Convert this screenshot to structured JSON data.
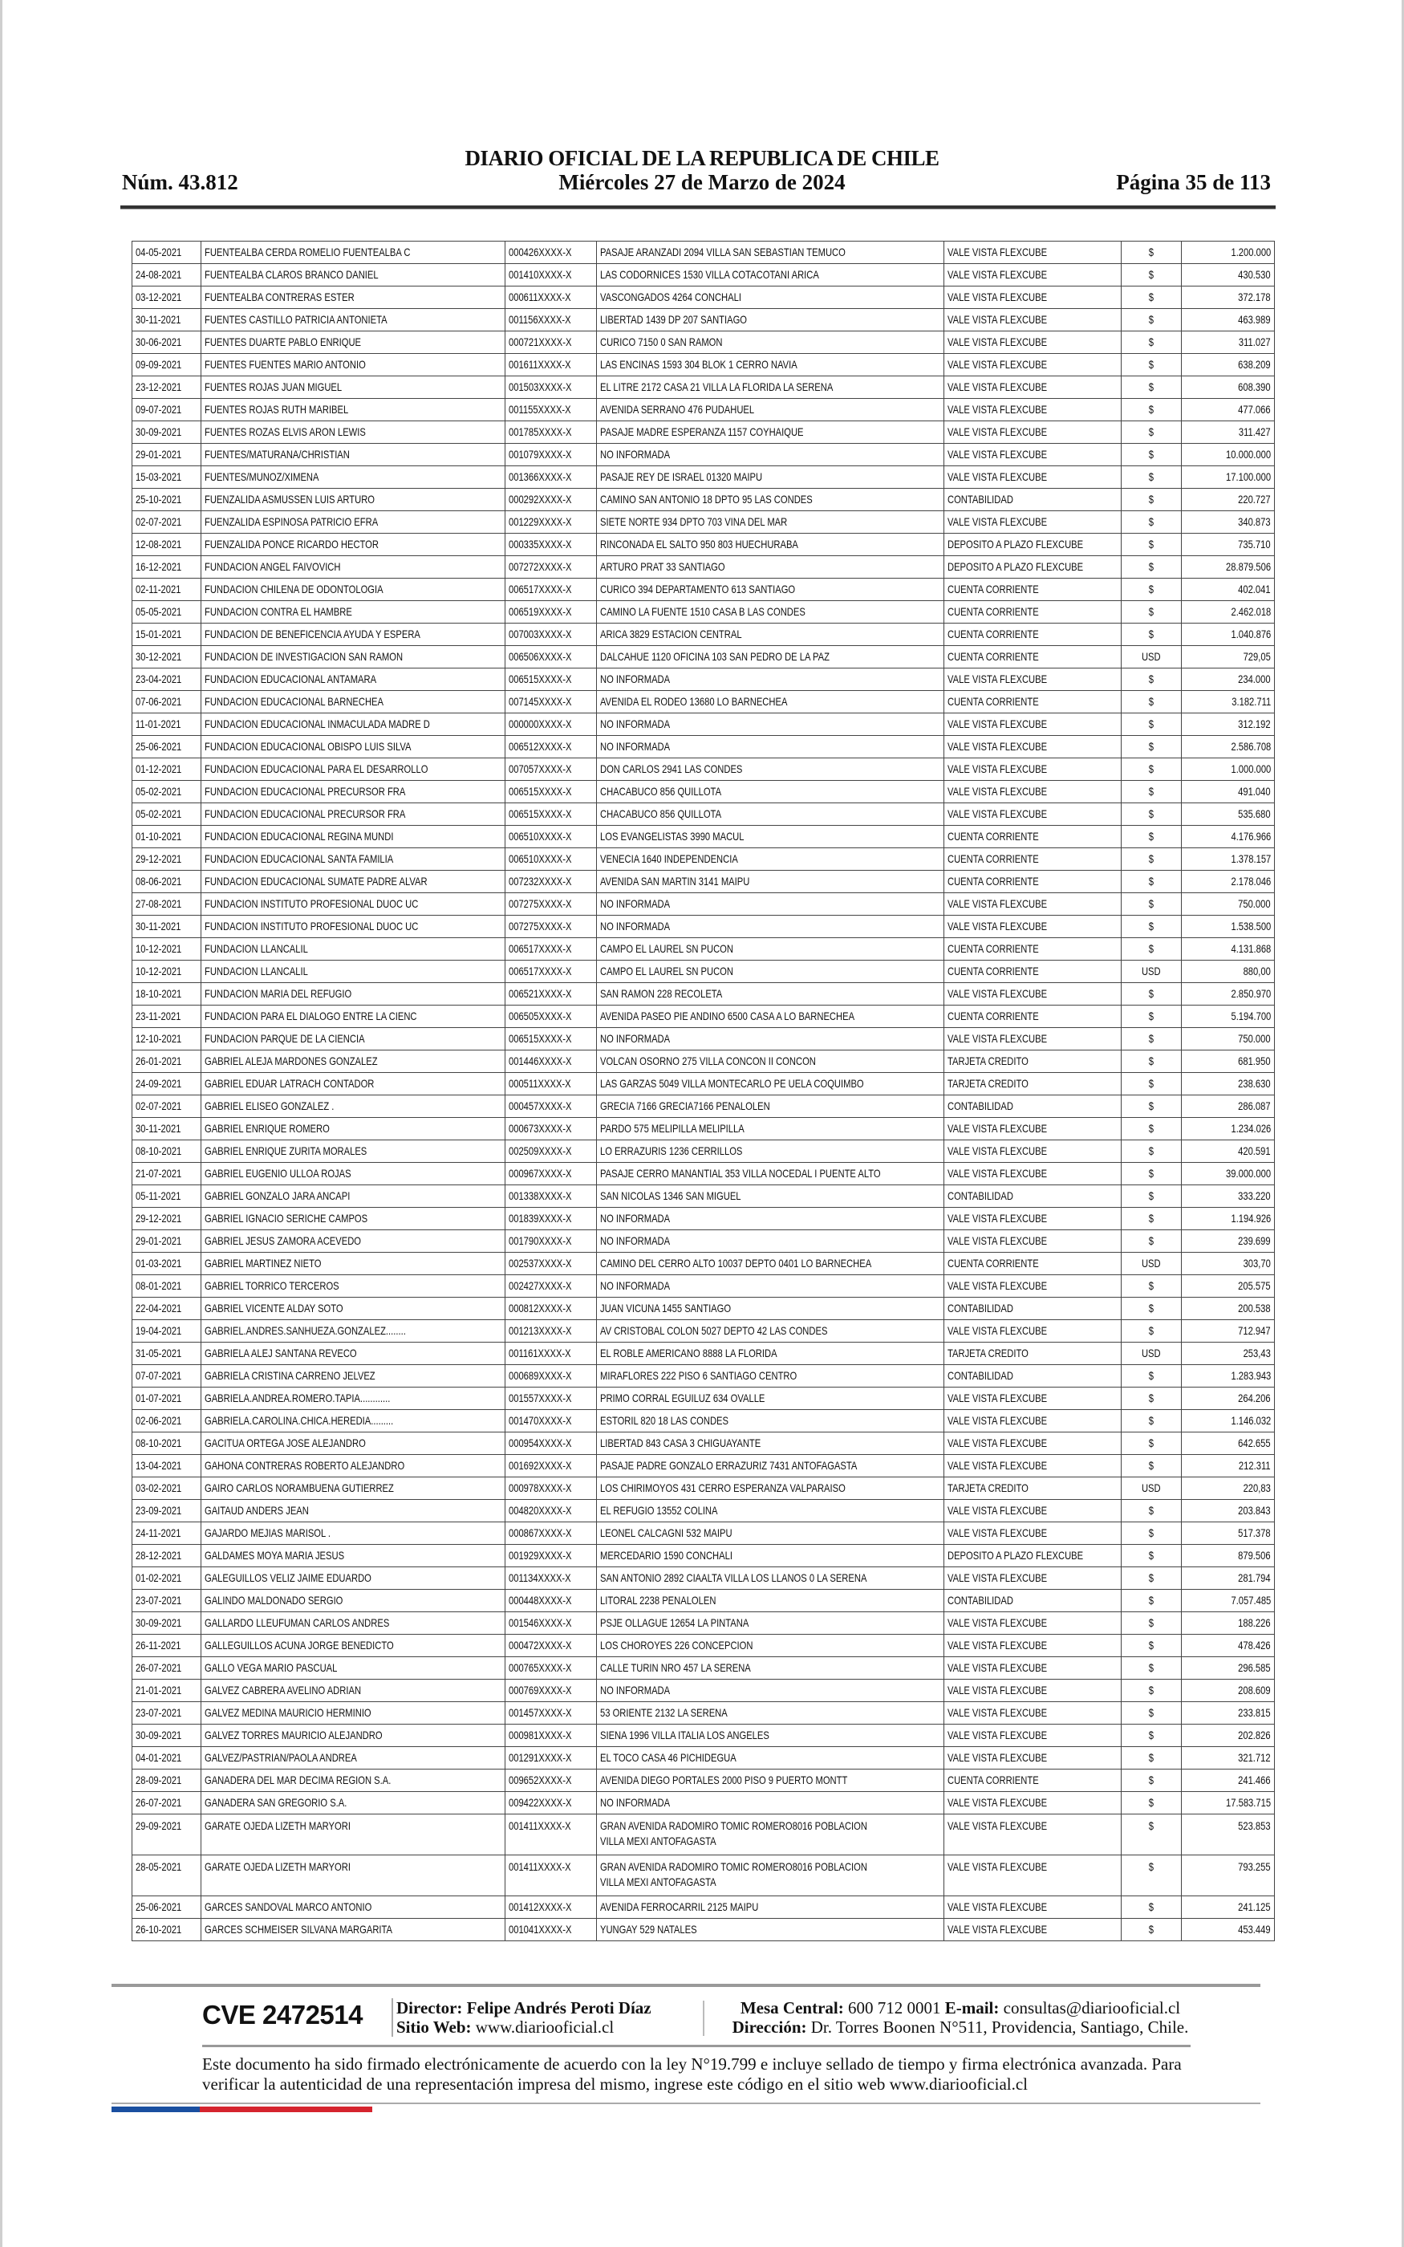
{
  "header": {
    "title": "DIARIO OFICIAL DE LA REPUBLICA DE CHILE",
    "number": "Núm. 43.812",
    "date": "Miércoles 27 de Marzo de 2024",
    "page": "Página 35 de 113"
  },
  "table": {
    "rows": [
      [
        "04-05-2021",
        "FUENTEALBA CERDA ROMELIO FUENTEALBA C",
        "000426XXXX-X",
        "PASAJE ARANZADI 2094 VILLA SAN SEBASTIAN TEMUCO",
        "VALE VISTA FLEXCUBE",
        "$",
        "1.200.000"
      ],
      [
        "24-08-2021",
        "FUENTEALBA CLAROS BRANCO DANIEL",
        "001410XXXX-X",
        "LAS CODORNICES 1530 VILLA COTACOTANI ARICA",
        "VALE VISTA FLEXCUBE",
        "$",
        "430.530"
      ],
      [
        "03-12-2021",
        "FUENTEALBA CONTRERAS ESTER",
        "000611XXXX-X",
        "VASCONGADOS 4264 CONCHALI",
        "VALE VISTA FLEXCUBE",
        "$",
        "372.178"
      ],
      [
        "30-11-2021",
        "FUENTES CASTILLO PATRICIA ANTONIETA",
        "001156XXXX-X",
        "LIBERTAD 1439 DP 207 SANTIAGO",
        "VALE VISTA FLEXCUBE",
        "$",
        "463.989"
      ],
      [
        "30-06-2021",
        "FUENTES DUARTE PABLO ENRIQUE",
        "000721XXXX-X",
        "CURICO 7150 0 SAN RAMON",
        "VALE VISTA FLEXCUBE",
        "$",
        "311.027"
      ],
      [
        "09-09-2021",
        "FUENTES FUENTES MARIO ANTONIO",
        "001611XXXX-X",
        "LAS ENCINAS 1593 304 BLOK 1 CERRO NAVIA",
        "VALE VISTA FLEXCUBE",
        "$",
        "638.209"
      ],
      [
        "23-12-2021",
        "FUENTES ROJAS JUAN MIGUEL",
        "001503XXXX-X",
        "EL LITRE 2172 CASA 21 VILLA LA FLORIDA LA SERENA",
        "VALE VISTA FLEXCUBE",
        "$",
        "608.390"
      ],
      [
        "09-07-2021",
        "FUENTES ROJAS RUTH MARIBEL",
        "001155XXXX-X",
        "AVENIDA SERRANO 476 PUDAHUEL",
        "VALE VISTA FLEXCUBE",
        "$",
        "477.066"
      ],
      [
        "30-09-2021",
        "FUENTES ROZAS ELVIS ARON LEWIS",
        "001785XXXX-X",
        "PASAJE MADRE ESPERANZA 1157 COYHAIQUE",
        "VALE VISTA FLEXCUBE",
        "$",
        "311.427"
      ],
      [
        "29-01-2021",
        "FUENTES/MATURANA/CHRISTIAN",
        "001079XXXX-X",
        "NO INFORMADA",
        "VALE VISTA FLEXCUBE",
        "$",
        "10.000.000"
      ],
      [
        "15-03-2021",
        "FUENTES/MUNOZ/XIMENA",
        "001366XXXX-X",
        "PASAJE REY DE ISRAEL 01320 MAIPU",
        "VALE VISTA FLEXCUBE",
        "$",
        "17.100.000"
      ],
      [
        "25-10-2021",
        "FUENZALIDA ASMUSSEN LUIS ARTURO",
        "000292XXXX-X",
        "CAMINO SAN ANTONIO 18 DPTO 95 LAS CONDES",
        "CONTABILIDAD",
        "$",
        "220.727"
      ],
      [
        "02-07-2021",
        "FUENZALIDA ESPINOSA PATRICIO EFRA",
        "001229XXXX-X",
        "SIETE NORTE 934 DPTO 703 VINA DEL MAR",
        "VALE VISTA FLEXCUBE",
        "$",
        "340.873"
      ],
      [
        "12-08-2021",
        "FUENZALIDA PONCE RICARDO HECTOR",
        "000335XXXX-X",
        "RINCONADA EL SALTO 950 803 HUECHURABA",
        "DEPOSITO A PLAZO FLEXCUBE",
        "$",
        "735.710"
      ],
      [
        "16-12-2021",
        "FUNDACION ANGEL FAIVOVICH",
        "007272XXXX-X",
        "ARTURO PRAT 33 SANTIAGO",
        "DEPOSITO A PLAZO FLEXCUBE",
        "$",
        "28.879.506"
      ],
      [
        "02-11-2021",
        "FUNDACION CHILENA DE ODONTOLOGIA",
        "006517XXXX-X",
        "CURICO 394 DEPARTAMENTO 613 SANTIAGO",
        "CUENTA CORRIENTE",
        "$",
        "402.041"
      ],
      [
        "05-05-2021",
        "FUNDACION CONTRA EL HAMBRE",
        "006519XXXX-X",
        "CAMINO LA FUENTE 1510 CASA B LAS CONDES",
        "CUENTA CORRIENTE",
        "$",
        "2.462.018"
      ],
      [
        "15-01-2021",
        "FUNDACION DE BENEFICENCIA AYUDA Y ESPERA",
        "007003XXXX-X",
        "ARICA 3829 ESTACION CENTRAL",
        "CUENTA CORRIENTE",
        "$",
        "1.040.876"
      ],
      [
        "30-12-2021",
        "FUNDACION DE INVESTIGACION SAN RAMON",
        "006506XXXX-X",
        "DALCAHUE 1120 OFICINA 103 SAN PEDRO DE LA PAZ",
        "CUENTA CORRIENTE",
        "USD",
        "729,05"
      ],
      [
        "23-04-2021",
        "FUNDACION EDUCACIONAL ANTAMARA",
        "006515XXXX-X",
        "NO INFORMADA",
        "VALE VISTA FLEXCUBE",
        "$",
        "234.000"
      ],
      [
        "07-06-2021",
        "FUNDACION EDUCACIONAL BARNECHEA",
        "007145XXXX-X",
        "AVENIDA EL RODEO 13680 LO BARNECHEA",
        "CUENTA CORRIENTE",
        "$",
        "3.182.711"
      ],
      [
        "11-01-2021",
        "FUNDACION EDUCACIONAL INMACULADA MADRE D",
        "000000XXXX-X",
        "NO INFORMADA",
        "VALE VISTA FLEXCUBE",
        "$",
        "312.192"
      ],
      [
        "25-06-2021",
        "FUNDACION EDUCACIONAL OBISPO LUIS SILVA",
        "006512XXXX-X",
        "NO INFORMADA",
        "VALE VISTA FLEXCUBE",
        "$",
        "2.586.708"
      ],
      [
        "01-12-2021",
        "FUNDACION EDUCACIONAL PARA EL DESARROLLO",
        "007057XXXX-X",
        "DON CARLOS 2941 LAS CONDES",
        "VALE VISTA FLEXCUBE",
        "$",
        "1.000.000"
      ],
      [
        "05-02-2021",
        "FUNDACION EDUCACIONAL PRECURSOR FRA",
        "006515XXXX-X",
        "CHACABUCO 856 QUILLOTA",
        "VALE VISTA FLEXCUBE",
        "$",
        "491.040"
      ],
      [
        "05-02-2021",
        "FUNDACION EDUCACIONAL PRECURSOR FRA",
        "006515XXXX-X",
        "CHACABUCO 856 QUILLOTA",
        "VALE VISTA FLEXCUBE",
        "$",
        "535.680"
      ],
      [
        "01-10-2021",
        "FUNDACION EDUCACIONAL REGINA MUNDI",
        "006510XXXX-X",
        "LOS EVANGELISTAS 3990 MACUL",
        "CUENTA CORRIENTE",
        "$",
        "4.176.966"
      ],
      [
        "29-12-2021",
        "FUNDACION EDUCACIONAL SANTA FAMILIA",
        "006510XXXX-X",
        "VENECIA 1640 INDEPENDENCIA",
        "CUENTA CORRIENTE",
        "$",
        "1.378.157"
      ],
      [
        "08-06-2021",
        "FUNDACION EDUCACIONAL SUMATE PADRE ALVAR",
        "007232XXXX-X",
        "AVENIDA SAN MARTIN 3141 MAIPU",
        "CUENTA CORRIENTE",
        "$",
        "2.178.046"
      ],
      [
        "27-08-2021",
        "FUNDACION INSTITUTO PROFESIONAL DUOC UC",
        "007275XXXX-X",
        "NO INFORMADA",
        "VALE VISTA FLEXCUBE",
        "$",
        "750.000"
      ],
      [
        "30-11-2021",
        "FUNDACION INSTITUTO PROFESIONAL DUOC UC",
        "007275XXXX-X",
        "NO INFORMADA",
        "VALE VISTA FLEXCUBE",
        "$",
        "1.538.500"
      ],
      [
        "10-12-2021",
        "FUNDACION LLANCALIL",
        "006517XXXX-X",
        "CAMPO EL LAUREL SN PUCON",
        "CUENTA CORRIENTE",
        "$",
        "4.131.868"
      ],
      [
        "10-12-2021",
        "FUNDACION LLANCALIL",
        "006517XXXX-X",
        "CAMPO EL LAUREL SN PUCON",
        "CUENTA CORRIENTE",
        "USD",
        "880,00"
      ],
      [
        "18-10-2021",
        "FUNDACION MARIA DEL REFUGIO",
        "006521XXXX-X",
        "SAN RAMON 228 RECOLETA",
        "VALE VISTA FLEXCUBE",
        "$",
        "2.850.970"
      ],
      [
        "23-11-2021",
        "FUNDACION PARA EL DIALOGO ENTRE LA CIENC",
        "006505XXXX-X",
        "AVENIDA PASEO PIE ANDINO 6500 CASA A LO BARNECHEA",
        "CUENTA CORRIENTE",
        "$",
        "5.194.700"
      ],
      [
        "12-10-2021",
        "FUNDACION PARQUE DE LA CIENCIA",
        "006515XXXX-X",
        "NO INFORMADA",
        "VALE VISTA FLEXCUBE",
        "$",
        "750.000"
      ],
      [
        "26-01-2021",
        "GABRIEL ALEJA MARDONES GONZALEZ",
        "001446XXXX-X",
        "VOLCAN OSORNO 275 VILLA CONCON II CONCON",
        "TARJETA CREDITO",
        "$",
        "681.950"
      ],
      [
        "24-09-2021",
        "GABRIEL EDUAR LATRACH CONTADOR",
        "000511XXXX-X",
        "LAS GARZAS 5049 VILLA MONTECARLO PE UELA COQUIMBO",
        "TARJETA CREDITO",
        "$",
        "238.630"
      ],
      [
        "02-07-2021",
        "GABRIEL ELISEO GONZALEZ .",
        "000457XXXX-X",
        "GRECIA 7166 GRECIA7166 PENALOLEN",
        "CONTABILIDAD",
        "$",
        "286.087"
      ],
      [
        "30-11-2021",
        "GABRIEL ENRIQUE ROMERO",
        "000673XXXX-X",
        "PARDO 575 MELIPILLA MELIPILLA",
        "VALE VISTA FLEXCUBE",
        "$",
        "1.234.026"
      ],
      [
        "08-10-2021",
        "GABRIEL ENRIQUE ZURITA MORALES",
        "002509XXXX-X",
        "LO ERRAZURIS 1236 CERRILLOS",
        "VALE VISTA FLEXCUBE",
        "$",
        "420.591"
      ],
      [
        "21-07-2021",
        "GABRIEL EUGENIO ULLOA ROJAS",
        "000967XXXX-X",
        "PASAJE CERRO MANANTIAL 353 VILLA NOCEDAL I PUENTE ALTO",
        "VALE VISTA FLEXCUBE",
        "$",
        "39.000.000"
      ],
      [
        "05-11-2021",
        "GABRIEL GONZALO JARA ANCAPI",
        "001338XXXX-X",
        "SAN NICOLAS 1346 SAN MIGUEL",
        "CONTABILIDAD",
        "$",
        "333.220"
      ],
      [
        "29-12-2021",
        "GABRIEL IGNACIO SERICHE CAMPOS",
        "001839XXXX-X",
        "NO INFORMADA",
        "VALE VISTA FLEXCUBE",
        "$",
        "1.194.926"
      ],
      [
        "29-01-2021",
        "GABRIEL JESUS ZAMORA ACEVEDO",
        "001790XXXX-X",
        "NO INFORMADA",
        "VALE VISTA FLEXCUBE",
        "$",
        "239.699"
      ],
      [
        "01-03-2021",
        "GABRIEL MARTINEZ NIETO",
        "002537XXXX-X",
        "CAMINO DEL CERRO ALTO 10037 DEPTO 0401 LO BARNECHEA",
        "CUENTA CORRIENTE",
        "USD",
        "303,70"
      ],
      [
        "08-01-2021",
        "GABRIEL TORRICO TERCEROS",
        "002427XXXX-X",
        "NO INFORMADA",
        "VALE VISTA FLEXCUBE",
        "$",
        "205.575"
      ],
      [
        "22-04-2021",
        "GABRIEL VICENTE ALDAY SOTO",
        "000812XXXX-X",
        "JUAN VICUNA 1455 SANTIAGO",
        "CONTABILIDAD",
        "$",
        "200.538"
      ],
      [
        "19-04-2021",
        "GABRIEL.ANDRES.SANHUEZA.GONZALEZ........",
        "001213XXXX-X",
        "AV CRISTOBAL COLON 5027 DEPTO 42 LAS CONDES",
        "VALE VISTA FLEXCUBE",
        "$",
        "712.947"
      ],
      [
        "31-05-2021",
        "GABRIELA ALEJ SANTANA REVECO",
        "001161XXXX-X",
        "EL ROBLE AMERICANO 8888 LA FLORIDA",
        "TARJETA CREDITO",
        "USD",
        "253,43"
      ],
      [
        "07-07-2021",
        "GABRIELA CRISTINA CARRENO JELVEZ",
        "000689XXXX-X",
        "MIRAFLORES 222 PISO 6 SANTIAGO CENTRO",
        "CONTABILIDAD",
        "$",
        "1.283.943"
      ],
      [
        "01-07-2021",
        "GABRIELA.ANDREA.ROMERO.TAPIA............",
        "001557XXXX-X",
        "PRIMO CORRAL EGUILUZ 634 OVALLE",
        "VALE VISTA FLEXCUBE",
        "$",
        "264.206"
      ],
      [
        "02-06-2021",
        "GABRIELA.CAROLINA.CHICA.HEREDIA.........",
        "001470XXXX-X",
        "ESTORIL 820 18 LAS CONDES",
        "VALE VISTA FLEXCUBE",
        "$",
        "1.146.032"
      ],
      [
        "08-10-2021",
        "GACITUA ORTEGA JOSE ALEJANDRO",
        "000954XXXX-X",
        "LIBERTAD 843 CASA 3 CHIGUAYANTE",
        "VALE VISTA FLEXCUBE",
        "$",
        "642.655"
      ],
      [
        "13-04-2021",
        "GAHONA CONTRERAS ROBERTO ALEJANDRO",
        "001692XXXX-X",
        "PASAJE PADRE GONZALO ERRAZURIZ 7431 ANTOFAGASTA",
        "VALE VISTA FLEXCUBE",
        "$",
        "212.311"
      ],
      [
        "03-02-2021",
        "GAIRO CARLOS NORAMBUENA GUTIERREZ",
        "000978XXXX-X",
        "LOS CHIRIMOYOS 431 CERRO ESPERANZA VALPARAISO",
        "TARJETA CREDITO",
        "USD",
        "220,83"
      ],
      [
        "23-09-2021",
        "GAITAUD ANDERS JEAN",
        "004820XXXX-X",
        "EL REFUGIO 13552 COLINA",
        "VALE VISTA FLEXCUBE",
        "$",
        "203.843"
      ],
      [
        "24-11-2021",
        "GAJARDO MEJIAS MARISOL .",
        "000867XXXX-X",
        "LEONEL CALCAGNI 532 MAIPU",
        "VALE VISTA FLEXCUBE",
        "$",
        "517.378"
      ],
      [
        "28-12-2021",
        "GALDAMES MOYA MARIA JESUS",
        "001929XXXX-X",
        "MERCEDARIO 1590 CONCHALI",
        "DEPOSITO A PLAZO FLEXCUBE",
        "$",
        "879.506"
      ],
      [
        "01-02-2021",
        "GALEGUILLOS VELIZ JAIME EDUARDO",
        "001134XXXX-X",
        "SAN ANTONIO 2892 CIAALTA VILLA LOS LLANOS 0 LA SERENA",
        "VALE VISTA FLEXCUBE",
        "$",
        "281.794"
      ],
      [
        "23-07-2021",
        "GALINDO MALDONADO SERGIO",
        "000448XXXX-X",
        "LITORAL 2238 PENALOLEN",
        "CONTABILIDAD",
        "$",
        "7.057.485"
      ],
      [
        "30-09-2021",
        "GALLARDO LLEUFUMAN CARLOS ANDRES",
        "001546XXXX-X",
        "PSJE OLLAGUE 12654 LA PINTANA",
        "VALE VISTA FLEXCUBE",
        "$",
        "188.226"
      ],
      [
        "26-11-2021",
        "GALLEGUILLOS ACUNA JORGE BENEDICTO",
        "000472XXXX-X",
        "LOS CHOROYES 226 CONCEPCION",
        "VALE VISTA FLEXCUBE",
        "$",
        "478.426"
      ],
      [
        "26-07-2021",
        "GALLO VEGA MARIO PASCUAL",
        "000765XXXX-X",
        "CALLE TURIN NRO 457 LA SERENA",
        "VALE VISTA FLEXCUBE",
        "$",
        "296.585"
      ],
      [
        "21-01-2021",
        "GALVEZ CABRERA AVELINO ADRIAN",
        "000769XXXX-X",
        "NO INFORMADA",
        "VALE VISTA FLEXCUBE",
        "$",
        "208.609"
      ],
      [
        "23-07-2021",
        "GALVEZ MEDINA MAURICIO HERMINIO",
        "001457XXXX-X",
        "53 ORIENTE 2132 LA SERENA",
        "VALE VISTA FLEXCUBE",
        "$",
        "233.815"
      ],
      [
        "30-09-2021",
        "GALVEZ TORRES MAURICIO ALEJANDRO",
        "000981XXXX-X",
        "SIENA 1996 VILLA ITALIA LOS ANGELES",
        "VALE VISTA FLEXCUBE",
        "$",
        "202.826"
      ],
      [
        "04-01-2021",
        "GALVEZ/PASTRIAN/PAOLA ANDREA",
        "001291XXXX-X",
        "EL TOCO CASA 46 PICHIDEGUA",
        "VALE VISTA FLEXCUBE",
        "$",
        "321.712"
      ],
      [
        "28-09-2021",
        "GANADERA DEL MAR DECIMA REGION S.A.",
        "009652XXXX-X",
        "AVENIDA DIEGO PORTALES 2000 PISO 9 PUERTO MONTT",
        "CUENTA CORRIENTE",
        "$",
        "241.466"
      ],
      [
        "26-07-2021",
        "GANADERA SAN GREGORIO S.A.",
        "009422XXXX-X",
        "NO INFORMADA",
        "VALE VISTA FLEXCUBE",
        "$",
        "17.583.715"
      ],
      [
        "29-09-2021",
        "GARATE OJEDA LIZETH MARYORI",
        "001411XXXX-X",
        "GRAN AVENIDA RADOMIRO TOMIC ROMERO8016 POBLACION\nVILLA MEXI ANTOFAGASTA",
        "VALE VISTA FLEXCUBE",
        "$",
        "523.853"
      ],
      [
        "28-05-2021",
        "GARATE OJEDA LIZETH MARYORI",
        "001411XXXX-X",
        "GRAN AVENIDA RADOMIRO TOMIC ROMERO8016 POBLACION\nVILLA MEXI ANTOFAGASTA",
        "VALE VISTA FLEXCUBE",
        "$",
        "793.255"
      ],
      [
        "25-06-2021",
        "GARCES SANDOVAL MARCO ANTONIO",
        "001412XXXX-X",
        "AVENIDA FERROCARRIL 2125 MAIPU",
        "VALE VISTA FLEXCUBE",
        "$",
        "241.125"
      ],
      [
        "26-10-2021",
        "GARCES SCHMEISER SILVANA MARGARITA",
        "001041XXXX-X",
        "YUNGAY 529 NATALES",
        "VALE VISTA FLEXCUBE",
        "$",
        "453.449"
      ]
    ]
  },
  "footer": {
    "cve": "CVE 2472514",
    "director_label": "Director:",
    "director_name": "Felipe Andrés Peroti Díaz",
    "web_label": "Sitio Web:",
    "web_value": "www.diariooficial.cl",
    "mesa_label": "Mesa Central:",
    "mesa_value": "600 712 0001",
    "email_label": "E-mail:",
    "email_value": "consultas@diariooficial.cl",
    "address_label": "Dirección:",
    "address_value": "Dr. Torres Boonen N°511, Providencia, Santiago, Chile.",
    "disclaimer": "Este documento ha sido firmado electrónicamente de acuerdo con la ley N°19.799 e incluye sellado de tiempo y firma electrónica avanzada. Para verificar la autenticidad de una representación impresa del mismo, ingrese este código en el sitio web www.diariooficial.cl",
    "flag_colors": [
      "#1a4fa0",
      "#d5242e"
    ]
  }
}
